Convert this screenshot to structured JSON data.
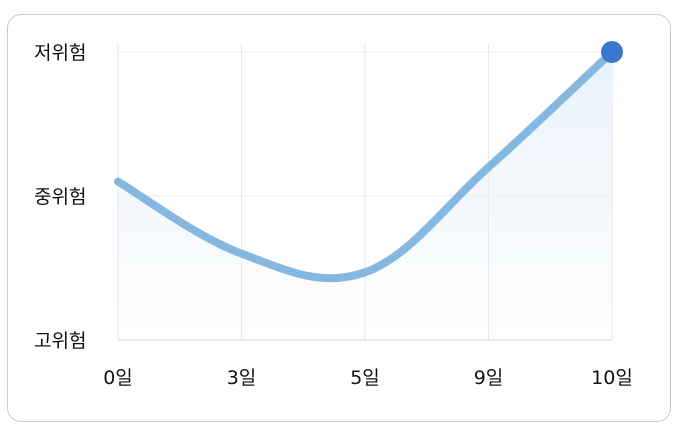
{
  "chart_data": {
    "type": "line",
    "x": [
      0,
      3,
      5,
      9,
      10
    ],
    "x_tick_labels": [
      "0일",
      "3일",
      "5일",
      "9일",
      "10일"
    ],
    "y_categories": [
      "고위험",
      "중위험",
      "저위험"
    ],
    "y_tick_labels": [
      "저위험",
      "중위험",
      "고위험"
    ],
    "series": [
      {
        "values": [
          1.1,
          0.6,
          0.47,
          1.2,
          2.0
        ]
      }
    ],
    "ylim": [
      0,
      2
    ],
    "grid": true,
    "line_color": "#85b8e0",
    "end_marker_color": "#3a78d0",
    "fill_color": "#e8f1fa"
  }
}
